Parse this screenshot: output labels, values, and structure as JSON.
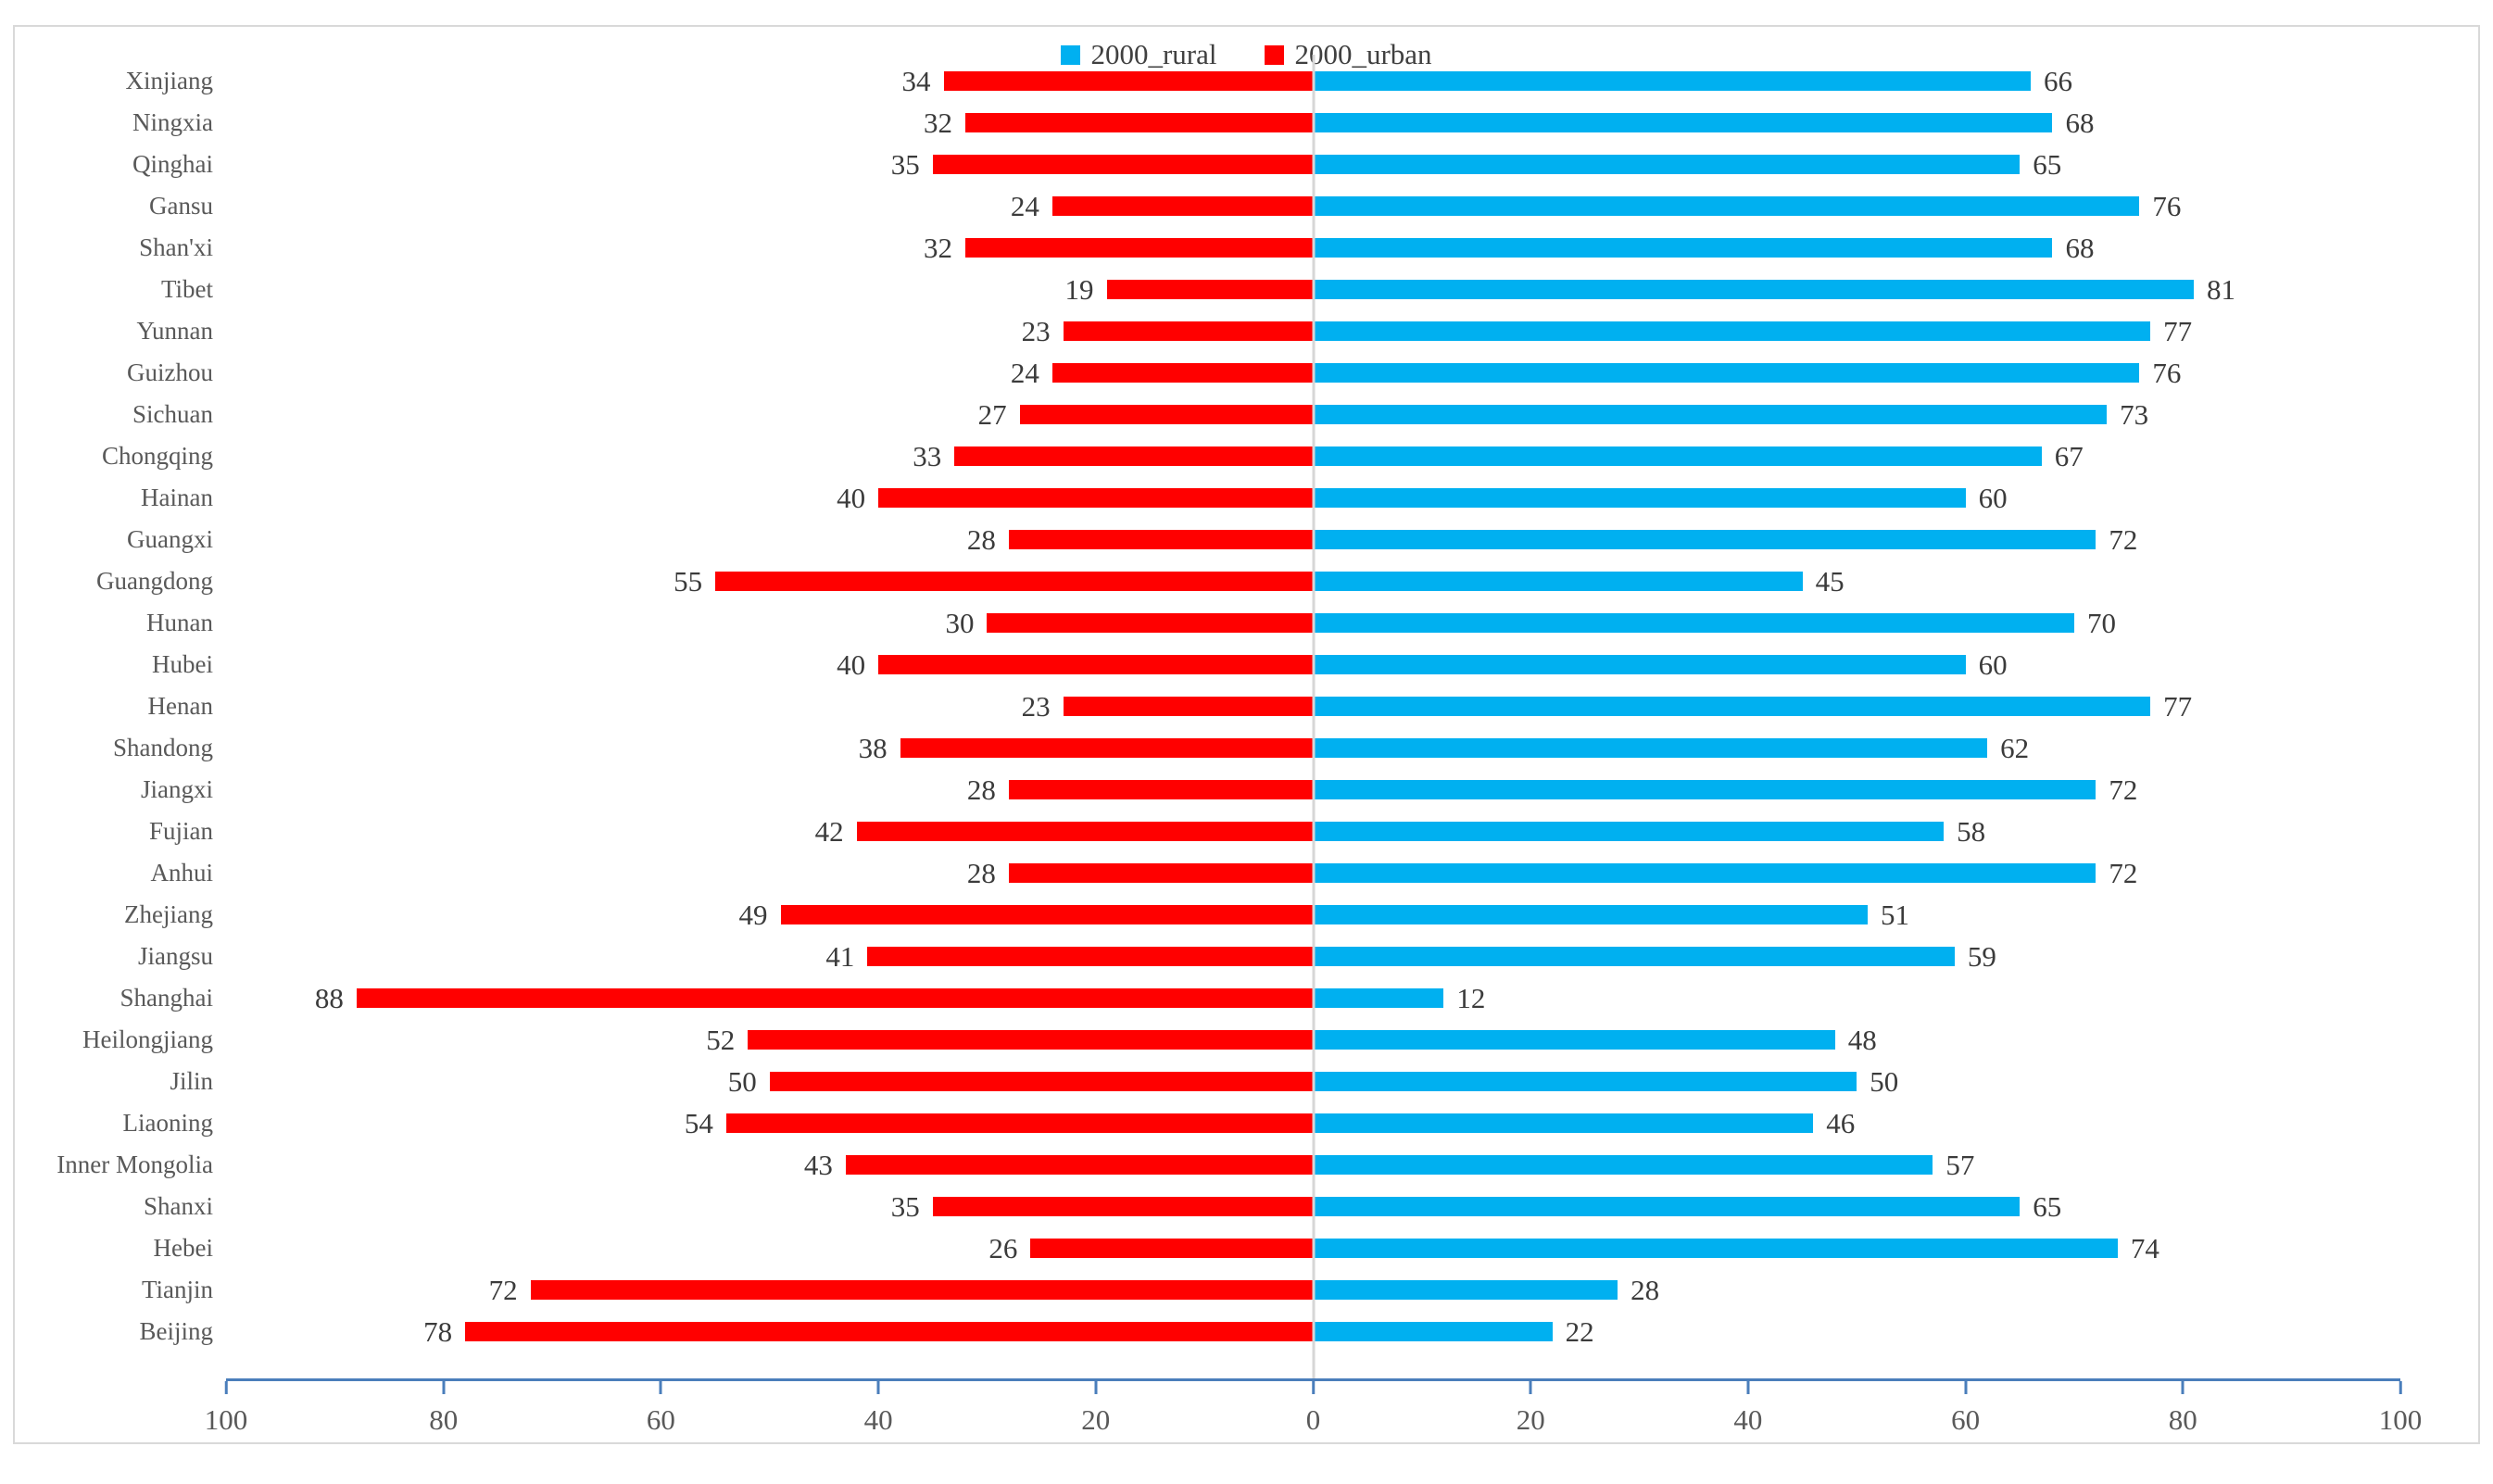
{
  "legend": {
    "items": [
      {
        "label": "2000_rural",
        "color": "#00B0F0"
      },
      {
        "label": "2000_urban",
        "color": "#FF0000"
      }
    ]
  },
  "axis": {
    "tick_labels": [
      "100",
      "80",
      "60",
      "40",
      "20",
      "0",
      "20",
      "40",
      "60",
      "80",
      "100"
    ],
    "line_color": "#4A7EBB"
  },
  "colors": {
    "rural_bar": "#00B0F0",
    "urban_bar": "#FF0000",
    "axis_line": "#4A7EBB",
    "center_line": "#D6D6D6",
    "value_text": "#3B3B3B",
    "category_text": "#595959",
    "frame_border": "#D9D9D9"
  },
  "chart_data": {
    "type": "bar",
    "variant": "diverging-horizontal",
    "title": "",
    "xlabel": "",
    "ylabel": "",
    "xlim": [
      -100,
      100
    ],
    "tick_step": 20,
    "legend_position": "top-center",
    "grid": false,
    "category_order": "top-to-bottom",
    "categories": [
      "Xinjiang",
      "Ningxia",
      "Qinghai",
      "Gansu",
      "Shan'xi",
      "Tibet",
      "Yunnan",
      "Guizhou",
      "Sichuan",
      "Chongqing",
      "Hainan",
      "Guangxi",
      "Guangdong",
      "Hunan",
      "Hubei",
      "Henan",
      "Shandong",
      "Jiangxi",
      "Fujian",
      "Anhui",
      "Zhejiang",
      "Jiangsu",
      "Shanghai",
      "Heilongjiang",
      "Jilin",
      "Liaoning",
      "Inner Mongolia",
      "Shanxi",
      "Hebei",
      "Tianjin",
      "Beijing"
    ],
    "series": [
      {
        "name": "2000_urban",
        "side": "left",
        "color": "#FF0000",
        "values": [
          34,
          32,
          35,
          24,
          32,
          19,
          23,
          24,
          27,
          33,
          40,
          28,
          55,
          30,
          40,
          23,
          38,
          28,
          42,
          28,
          49,
          41,
          88,
          52,
          50,
          54,
          43,
          35,
          26,
          72,
          78
        ]
      },
      {
        "name": "2000_rural",
        "side": "right",
        "color": "#00B0F0",
        "values": [
          66,
          68,
          65,
          76,
          68,
          81,
          77,
          76,
          73,
          67,
          60,
          72,
          45,
          70,
          60,
          77,
          62,
          72,
          58,
          72,
          51,
          59,
          12,
          48,
          50,
          46,
          57,
          65,
          74,
          28,
          22
        ]
      }
    ]
  }
}
